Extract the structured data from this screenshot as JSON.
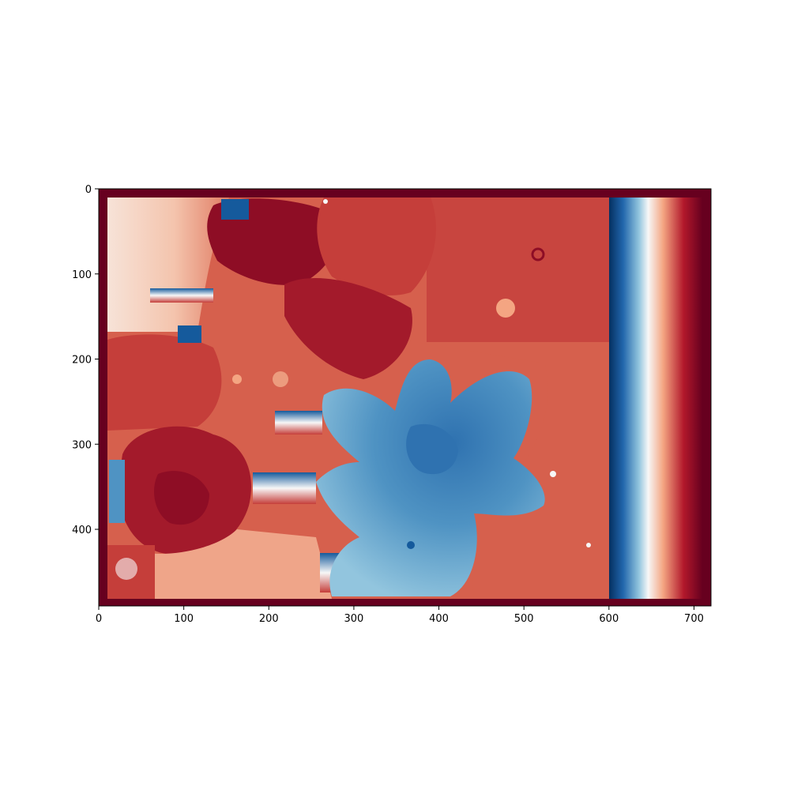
{
  "chart_data": {
    "type": "heatmap",
    "title": "",
    "xlabel": "",
    "ylabel": "",
    "colormap": "RdBu",
    "image_size": {
      "width": 720,
      "height": 490
    },
    "xlim": [
      0,
      720
    ],
    "ylim": [
      490,
      0
    ],
    "y_axis_inverted": true,
    "x_ticks": [
      0,
      100,
      200,
      300,
      400,
      500,
      600,
      700
    ],
    "x_tick_labels": [
      "0",
      "100",
      "200",
      "300",
      "400",
      "500",
      "600",
      "700"
    ],
    "y_ticks": [
      0,
      100,
      200,
      300,
      400
    ],
    "y_tick_labels": [
      "0",
      "100",
      "200",
      "300",
      "400"
    ],
    "grid": false,
    "legend": "none",
    "colors": {
      "border": "#67001f",
      "dark_red": "#8e0d25",
      "red": "#c53e3a",
      "light_red": "#e4846a",
      "pale_red": "#f5c4ab",
      "white": "#f7f7f7",
      "light_blue": "#a6cde3",
      "blue": "#4f93c3",
      "dark_blue": "#155a9c"
    },
    "regions": [
      {
        "name": "outer-border",
        "x": [
          0,
          720
        ],
        "y": [
          0,
          490
        ],
        "color": "#67001f"
      },
      {
        "name": "background-field",
        "x": [
          10,
          600
        ],
        "y": [
          10,
          480
        ],
        "color": "#d65d4c"
      },
      {
        "name": "top-left-pale-zone",
        "x": [
          10,
          130
        ],
        "y": [
          10,
          170
        ],
        "color": "#f3c1ab"
      },
      {
        "name": "bottom-left-flower",
        "cx": 120,
        "cy": 360,
        "r": 80,
        "color": "#a31a2b"
      },
      {
        "name": "top-center-petal",
        "cx": 210,
        "cy": 70,
        "r": 70,
        "color": "#8e0d25"
      },
      {
        "name": "central-blue-flower",
        "cx": 395,
        "cy": 330,
        "r": 150,
        "color": "#4f93c3"
      },
      {
        "name": "bottom-left-pale-patch",
        "x": [
          70,
          300
        ],
        "y": [
          410,
          480
        ],
        "color": "#efa589"
      },
      {
        "name": "gradient-strip",
        "x": [
          600,
          710
        ],
        "y": [
          10,
          480
        ],
        "gradient": [
          "#053061",
          "#2166ac",
          "#92c5de",
          "#f7f7f7",
          "#f4a582",
          "#b2182b",
          "#67001f"
        ]
      }
    ]
  }
}
